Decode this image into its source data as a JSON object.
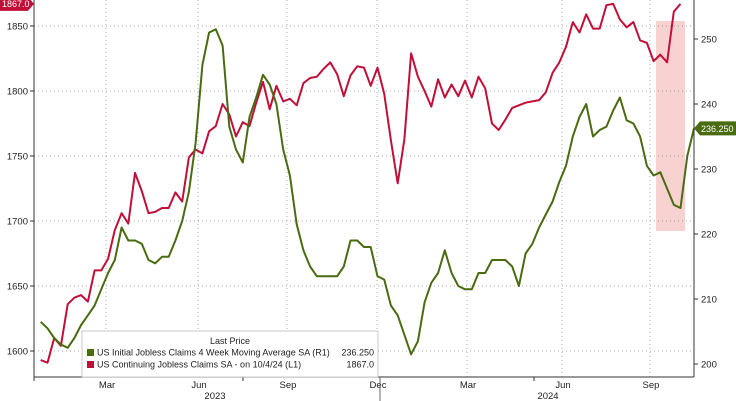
{
  "chart_data": {
    "type": "line",
    "title": "",
    "xlabel": "",
    "x_month_ticks": [
      "Mar",
      "Jun",
      "Sep",
      "Dec",
      "Mar",
      "Jun",
      "Sep"
    ],
    "x_year_labels": [
      "2023",
      "2024"
    ],
    "left_axis": {
      "ticks": [
        "1600",
        "1650",
        "1700",
        "1750",
        "1800",
        "1850"
      ],
      "ylim": [
        1580,
        1870
      ]
    },
    "right_axis": {
      "ticks": [
        "200",
        "210",
        "220",
        "230",
        "240",
        "250"
      ],
      "ylim": [
        198,
        256
      ]
    },
    "legend": {
      "title": "Last Price",
      "entries": [
        {
          "text": "US Initial Jobless Claims 4 Week Moving Average SA  (R1)",
          "value": "236.250",
          "color": "#4a6b12"
        },
        {
          "text": "US Continuing Jobless Claims SA -  on 10/4/24  (L1)",
          "value": "1867.0",
          "color": "#c0103a"
        }
      ]
    },
    "last_value_labels": {
      "left": "1867.0",
      "right": "236.250"
    },
    "highlight_color": "#f7c9c9",
    "series": [
      {
        "name": "US Continuing Jobless Claims SA",
        "axis": "left",
        "color": "#c0103a",
        "values": [
          1593,
          1591,
          1610,
          1604,
          1636,
          1641,
          1643,
          1638,
          1662,
          1662,
          1671,
          1693,
          1706,
          1698,
          1737,
          1723,
          1706,
          1707,
          1710,
          1710,
          1722,
          1715,
          1749,
          1755,
          1752,
          1769,
          1773,
          1790,
          1782,
          1765,
          1776,
          1773,
          1791,
          1807,
          1786,
          1804,
          1792,
          1794,
          1789,
          1806,
          1810,
          1811,
          1817,
          1822,
          1813,
          1796,
          1812,
          1819,
          1818,
          1804,
          1818,
          1798,
          1762,
          1729,
          1763,
          1829,
          1811,
          1800,
          1788,
          1809,
          1795,
          1805,
          1796,
          1808,
          1795,
          1811,
          1802,
          1775,
          1770,
          1778,
          1787,
          1789,
          1791,
          1792,
          1793,
          1799,
          1814,
          1822,
          1834,
          1853,
          1845,
          1859,
          1848,
          1848,
          1866,
          1867,
          1855,
          1849,
          1853,
          1839,
          1837,
          1823,
          1828,
          1822,
          1861,
          1867
        ]
      },
      {
        "name": "US Initial Jobless Claims 4 Week Moving Average SA",
        "axis": "right",
        "color": "#4a6b12",
        "values": [
          206.5,
          205.5,
          204,
          203,
          202.5,
          204,
          206,
          207.5,
          209,
          211.5,
          214,
          216,
          221,
          219,
          219,
          218.5,
          216,
          215.5,
          216.5,
          216.5,
          219,
          222,
          226.5,
          234,
          246,
          251,
          251.5,
          249,
          236.5,
          233,
          231,
          238,
          241,
          244.5,
          243,
          240,
          233,
          229,
          221.5,
          217.5,
          215,
          213.5,
          213.5,
          213.5,
          213.5,
          215,
          219,
          219,
          218,
          218,
          213.5,
          213,
          209,
          207.5,
          204.5,
          201.5,
          203.5,
          209.5,
          212.5,
          214,
          217.5,
          214,
          212,
          211.5,
          211.5,
          214,
          214,
          216,
          216,
          216,
          215,
          212,
          217,
          218.5,
          221,
          223,
          225,
          228,
          230.5,
          235,
          238,
          240,
          235,
          236,
          236.5,
          239,
          241,
          237.5,
          237,
          235,
          230.5,
          229,
          229.5,
          227,
          224.5,
          224,
          232,
          236.25
        ]
      }
    ]
  }
}
